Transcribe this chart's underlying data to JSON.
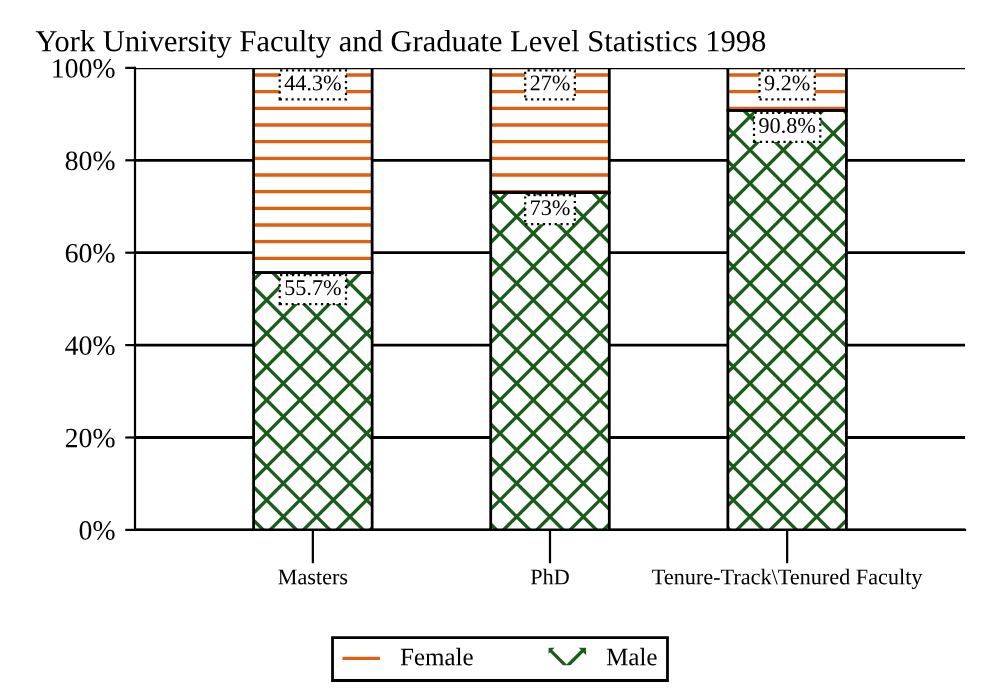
{
  "chart_data": {
    "type": "bar",
    "title": "York University Faculty and Graduate Level Statistics 1998",
    "categories": [
      "Masters",
      "PhD",
      "Tenure-Track\\Tenured Faculty"
    ],
    "stacked": true,
    "series": [
      {
        "name": "Male",
        "color": "#1a5c1a",
        "values": [
          55.7,
          73,
          90.8
        ],
        "value_labels": [
          "55.7%",
          "73%",
          "90.8%"
        ]
      },
      {
        "name": "Female",
        "color": "#e06010",
        "values": [
          44.3,
          27,
          9.2
        ],
        "value_labels": [
          "44.3%",
          "27%",
          "9.2%"
        ]
      }
    ],
    "ylim": [
      0,
      100
    ],
    "yticks": [
      {
        "value": 0,
        "label": "0%"
      },
      {
        "value": 20,
        "label": "20%"
      },
      {
        "value": 40,
        "label": "40%"
      },
      {
        "value": 60,
        "label": "60%"
      },
      {
        "value": 80,
        "label": "80%"
      },
      {
        "value": 100,
        "label": "100%"
      }
    ],
    "grid": "y",
    "legend": "bottom"
  }
}
